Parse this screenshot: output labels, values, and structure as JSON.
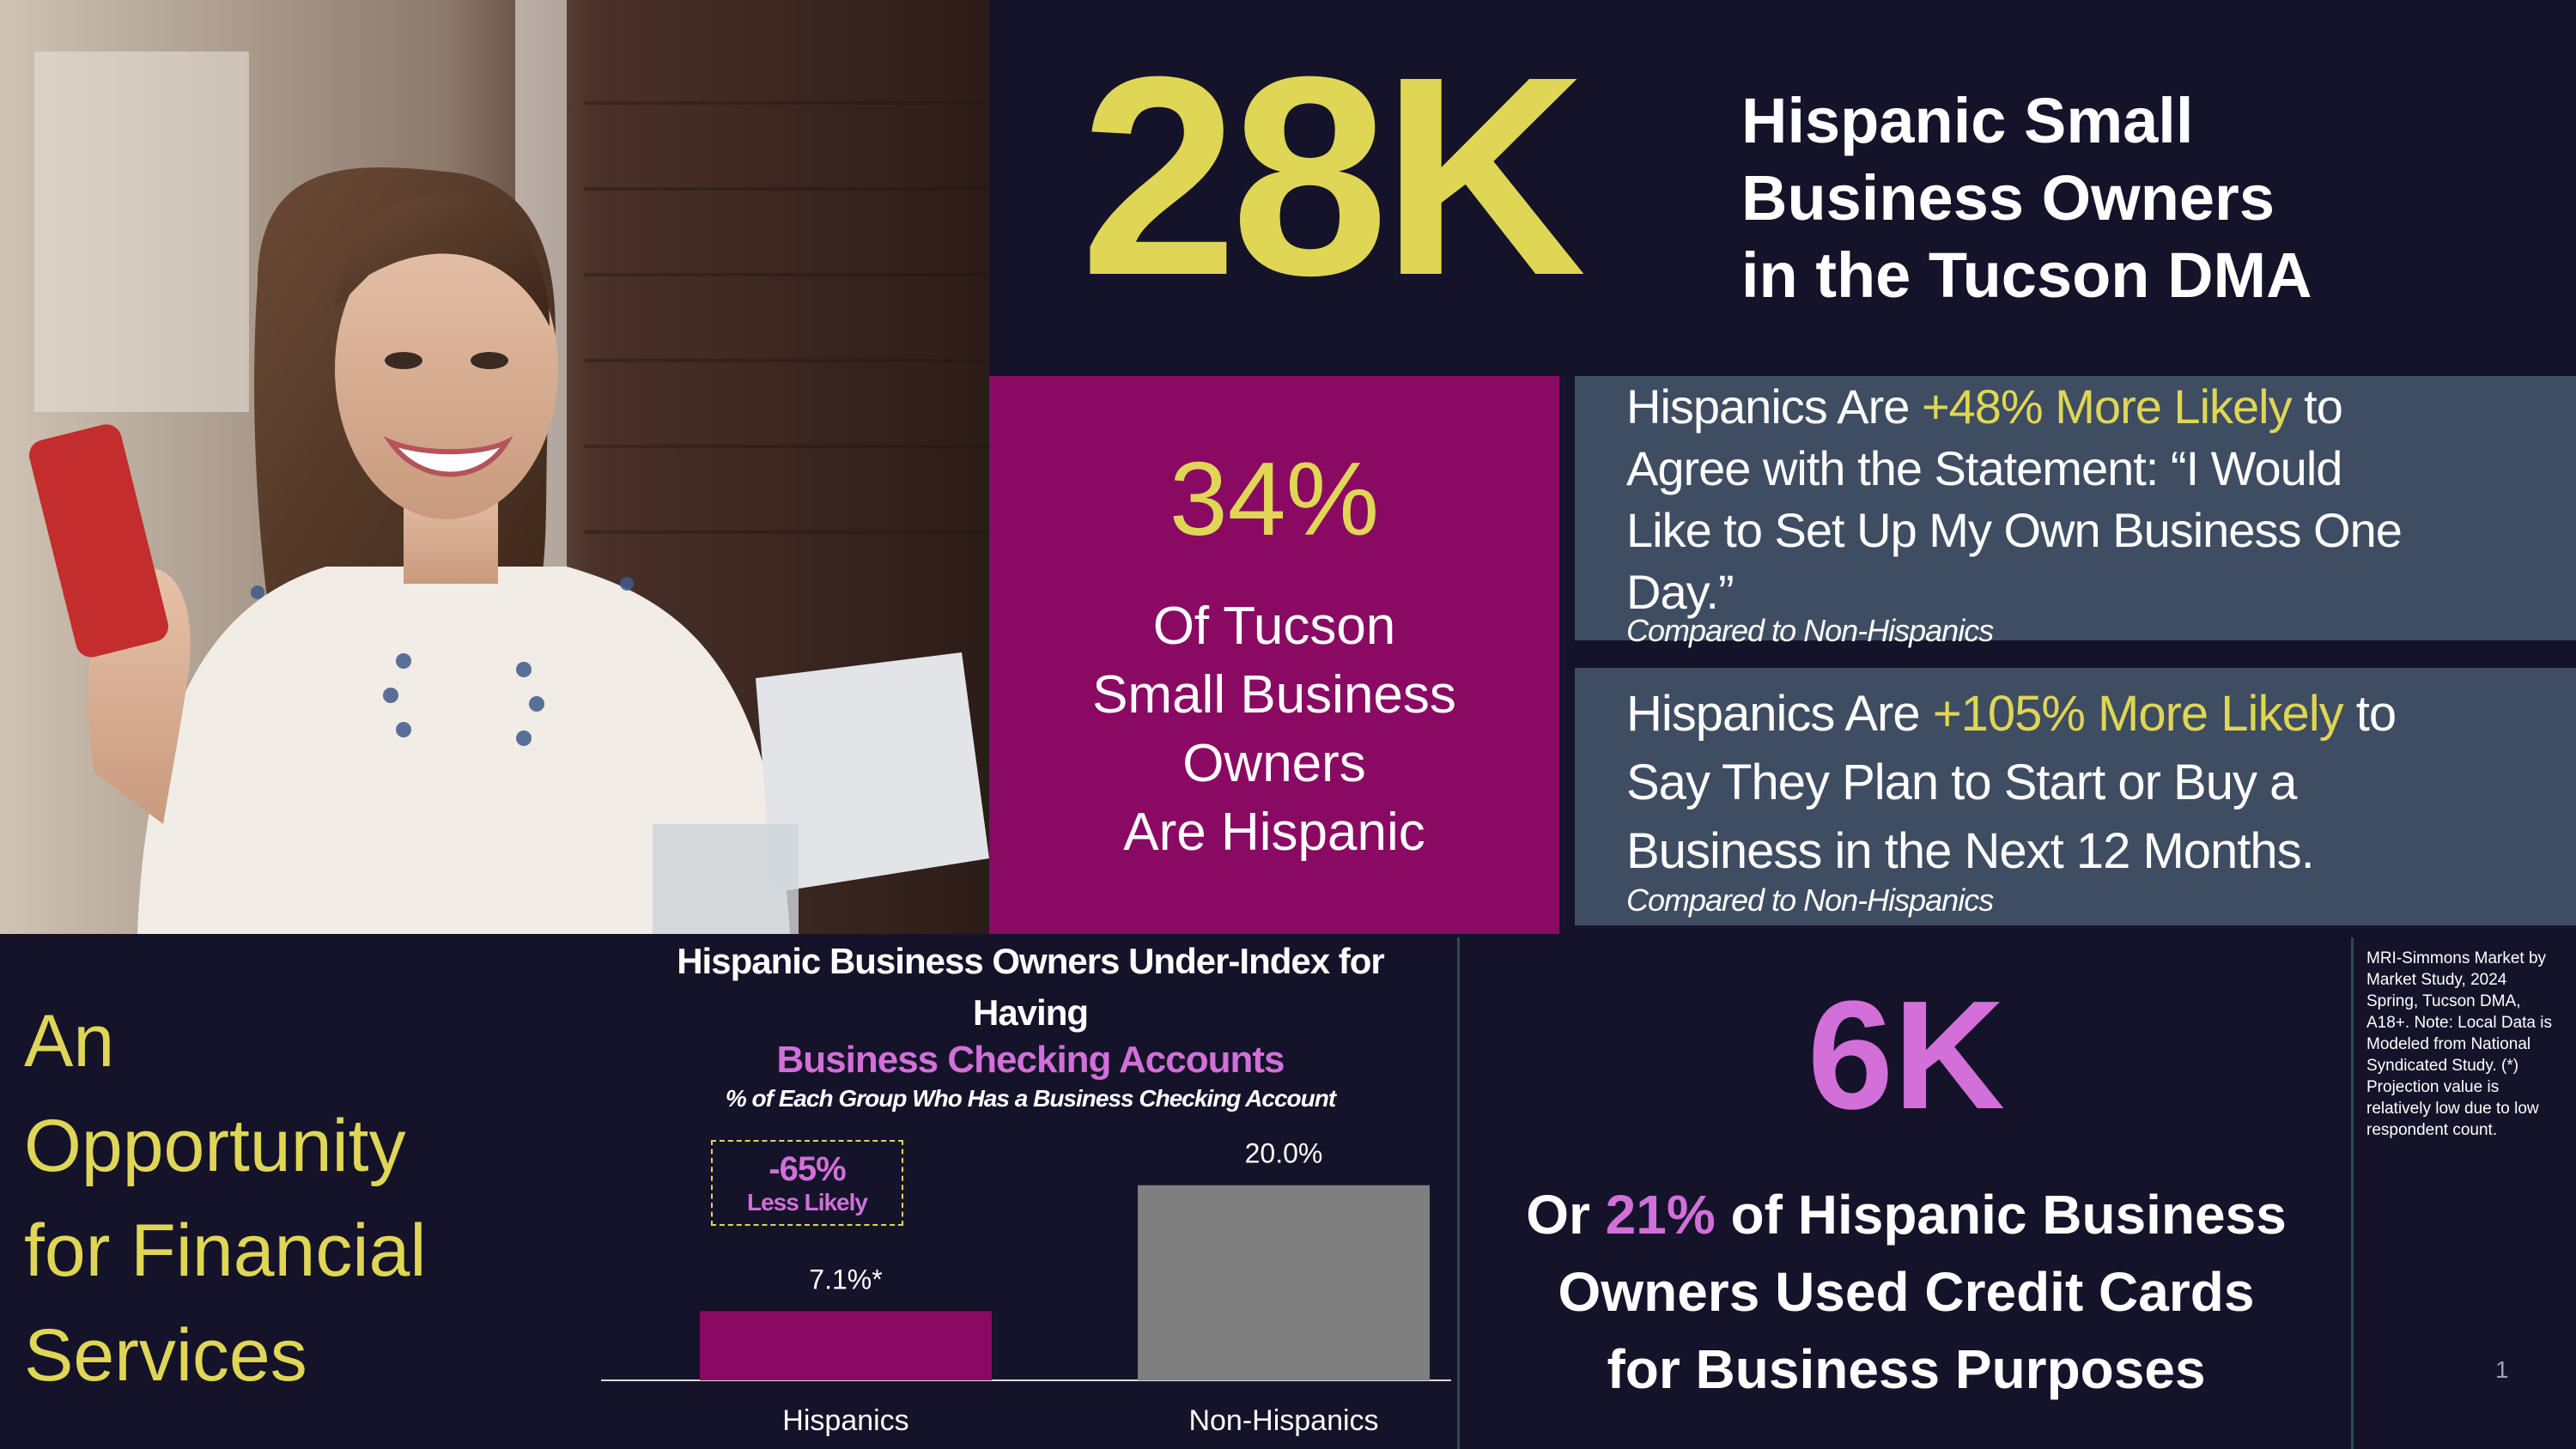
{
  "headline": {
    "big_number": "28K",
    "line_1": "Hispanic Small",
    "line_2": "Business Owners",
    "line_3": "in the Tucson DMA"
  },
  "hispanic_share": {
    "percent": "34%",
    "line_1": "Of Tucson",
    "line_2": "Small Business",
    "line_3": "Owners",
    "line_4": "Are Hispanic"
  },
  "stat_own_business": {
    "pre": "Hispanics Are ",
    "highlight": "+48% More Likely",
    "post": " to",
    "line_2": "Agree with the Statement: “I Would",
    "line_3": "Like  to Set Up My Own Business One",
    "line_4": "Day.”",
    "note": "Compared to Non-Hispanics"
  },
  "stat_start_business": {
    "pre": "Hispanics Are ",
    "highlight": "+105% More Likely",
    "post": " to",
    "line_2": "Say They Plan to Start or Buy a",
    "line_3": "Business in the Next 12 Months.",
    "note": "Compared to Non-Hispanics"
  },
  "opportunity": {
    "line_1": "An",
    "line_2": "Opportunity",
    "line_3": "for Financial",
    "line_4": "Services"
  },
  "chart_header": {
    "title_line_1": "Hispanic Business Owners Under-Index for",
    "title_line_2": "Having",
    "subtitle": "Business Checking Accounts",
    "caption": "% of Each Group Who Has a Business Checking Account"
  },
  "chart_callout": {
    "value": "-65%",
    "label": "Less Likely"
  },
  "chart_data": {
    "type": "bar",
    "categories": [
      "Hispanics",
      "Non-Hispanics"
    ],
    "values": [
      7.1,
      20.0
    ],
    "data_labels": [
      "7.1%*",
      "20.0%"
    ],
    "colors": [
      "#8a0a63",
      "#7f7f7f"
    ],
    "title": "Hispanic Business Owners Under-Index for Having Business Checking Accounts",
    "ylabel": "",
    "xlabel": "",
    "ylim": [
      0,
      22
    ]
  },
  "credit_cards": {
    "big_number": "6K",
    "line_1_pre": "Or ",
    "line_1_pct": "21%",
    "line_1_post": " of Hispanic Business",
    "line_2": "Owners Used Credit Cards",
    "line_3": "for Business Purposes"
  },
  "source_note": "MRI-Simmons Market by Market Study, 2024 Spring, Tucson DMA, A18+. Note: Local Data is Modeled from National Syndicated Study. (*) Projection value is relatively low due to low respondent count.",
  "page_number": "1",
  "colors": {
    "accent_yellow": "#dfd655",
    "accent_pink": "#d26fd8",
    "magenta": "#8a0a63",
    "slate": "#3f4d62",
    "background": "#15132a"
  }
}
